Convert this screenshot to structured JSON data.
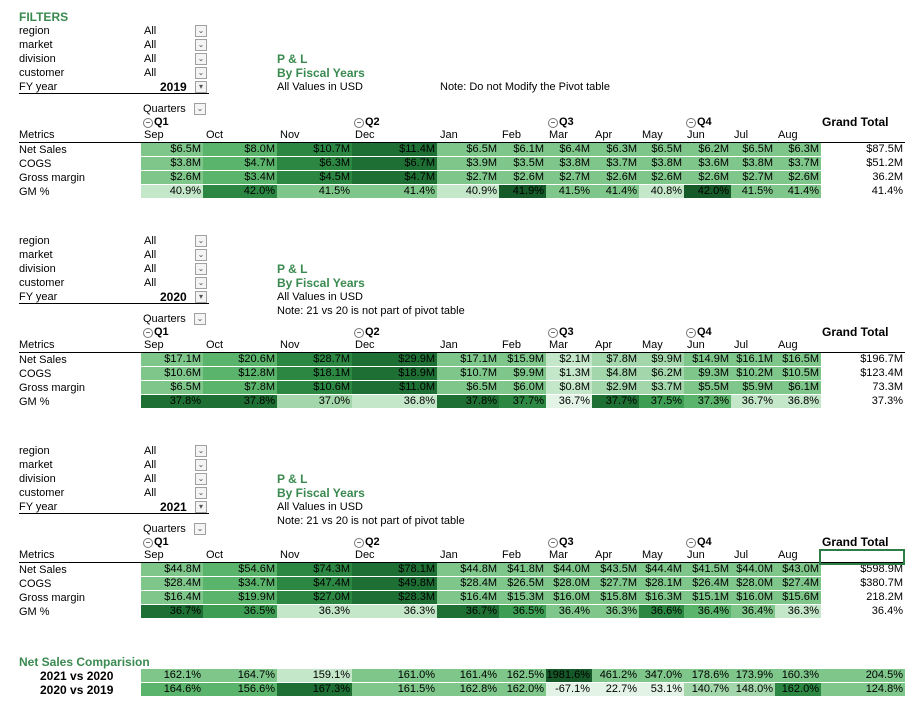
{
  "filters_title": "FILTERS",
  "filter_labels": [
    "region",
    "market",
    "division",
    "customer"
  ],
  "filter_value": "All",
  "fy_label": "FY year",
  "report_title": "P & L",
  "report_subtitle": "By Fiscal Years",
  "values_note": "All Values in USD",
  "quarters_label": "Quarters",
  "metrics_label": "Metrics",
  "grand_total_label": "Grand Total",
  "quarters": [
    "Q1",
    "Q2",
    "Q3",
    "Q4"
  ],
  "months": [
    "Sep",
    "Oct",
    "Nov",
    "Dec",
    "Jan",
    "Feb",
    "Mar",
    "Apr",
    "May",
    "Jun",
    "Jul",
    "Aug"
  ],
  "metric_names": [
    "Net Sales",
    "COGS",
    "Gross margin",
    "GM %"
  ],
  "blocks": [
    {
      "year": "2019",
      "note": "Note: Do not Modify the Pivot table",
      "rows": [
        {
          "values": [
            "$6.5M",
            "$8.0M",
            "$10.7M",
            "$11.4M",
            "$6.5M",
            "$6.1M",
            "$6.4M",
            "$6.3M",
            "$6.5M",
            "$6.2M",
            "$6.5M",
            "$6.3M"
          ],
          "total": "$87.5M"
        },
        {
          "values": [
            "$3.8M",
            "$4.7M",
            "$6.3M",
            "$6.7M",
            "$3.9M",
            "$3.5M",
            "$3.8M",
            "$3.7M",
            "$3.8M",
            "$3.6M",
            "$3.8M",
            "$3.7M"
          ],
          "total": "$51.2M"
        },
        {
          "values": [
            "$2.6M",
            "$3.4M",
            "$4.5M",
            "$4.7M",
            "$2.7M",
            "$2.6M",
            "$2.7M",
            "$2.6M",
            "$2.6M",
            "$2.6M",
            "$2.7M",
            "$2.6M"
          ],
          "total": "36.2M"
        },
        {
          "values": [
            "40.9%",
            "42.0%",
            "41.5%",
            "41.4%",
            "40.9%",
            "41.9%",
            "41.5%",
            "41.4%",
            "40.8%",
            "42.0%",
            "41.5%",
            "41.4%"
          ],
          "total": "41.4%"
        }
      ]
    },
    {
      "year": "2020",
      "note": "Note: 21 vs 20 is not part of pivot table",
      "rows": [
        {
          "values": [
            "$17.1M",
            "$20.6M",
            "$28.7M",
            "$29.9M",
            "$17.1M",
            "$15.9M",
            "$2.1M",
            "$7.8M",
            "$9.9M",
            "$14.9M",
            "$16.1M",
            "$16.5M"
          ],
          "total": "$196.7M"
        },
        {
          "values": [
            "$10.6M",
            "$12.8M",
            "$18.1M",
            "$18.9M",
            "$10.7M",
            "$9.9M",
            "$1.3M",
            "$4.8M",
            "$6.2M",
            "$9.3M",
            "$10.2M",
            "$10.5M"
          ],
          "total": "$123.4M"
        },
        {
          "values": [
            "$6.5M",
            "$7.8M",
            "$10.6M",
            "$11.0M",
            "$6.5M",
            "$6.0M",
            "$0.8M",
            "$2.9M",
            "$3.7M",
            "$5.5M",
            "$5.9M",
            "$6.1M"
          ],
          "total": "73.3M"
        },
        {
          "values": [
            "37.8%",
            "37.8%",
            "37.0%",
            "36.8%",
            "37.8%",
            "37.7%",
            "36.7%",
            "37.7%",
            "37.5%",
            "37.3%",
            "36.7%",
            "36.8%"
          ],
          "total": "37.3%"
        }
      ]
    },
    {
      "year": "2021",
      "note": "Note: 21 vs 20 is not part of pivot table",
      "rows": [
        {
          "values": [
            "$44.8M",
            "$54.6M",
            "$74.3M",
            "$78.1M",
            "$44.8M",
            "$41.8M",
            "$44.0M",
            "$43.5M",
            "$44.4M",
            "$41.5M",
            "$44.0M",
            "$43.0M"
          ],
          "total": "$598.9M"
        },
        {
          "values": [
            "$28.4M",
            "$34.7M",
            "$47.4M",
            "$49.8M",
            "$28.4M",
            "$26.5M",
            "$28.0M",
            "$27.7M",
            "$28.1M",
            "$26.4M",
            "$28.0M",
            "$27.4M"
          ],
          "total": "$380.7M"
        },
        {
          "values": [
            "$16.4M",
            "$19.9M",
            "$27.0M",
            "$28.3M",
            "$16.4M",
            "$15.3M",
            "$16.0M",
            "$15.8M",
            "$16.3M",
            "$15.1M",
            "$16.0M",
            "$15.6M"
          ],
          "total": "218.2M"
        },
        {
          "values": [
            "36.7%",
            "36.5%",
            "36.3%",
            "36.3%",
            "36.7%",
            "36.5%",
            "36.4%",
            "36.3%",
            "36.6%",
            "36.4%",
            "36.4%",
            "36.3%"
          ],
          "total": "36.4%"
        }
      ]
    }
  ],
  "comparison": {
    "title": "Net Sales Comparision",
    "rows": [
      {
        "label": "2021 vs 2020",
        "values": [
          "162.1%",
          "164.7%",
          "159.1%",
          "161.0%",
          "161.4%",
          "162.5%",
          "1981.6%",
          "461.2%",
          "347.0%",
          "178.6%",
          "173.9%",
          "160.3%"
        ],
        "total": "204.5%"
      },
      {
        "label": "2020 vs 2019",
        "values": [
          "164.6%",
          "156.6%",
          "167.3%",
          "161.5%",
          "162.8%",
          "162.0%",
          "-67.1%",
          "22.7%",
          "53.1%",
          "140.7%",
          "148.0%",
          "162.0%"
        ],
        "total": "124.8%"
      }
    ]
  },
  "colors": {
    "title_green": "#3a8a50",
    "heat": [
      "#e3f3e5",
      "#c4e6c9",
      "#a3d7ab",
      "#7fc68a",
      "#5bb46b",
      "#3d9e53",
      "#2b8742",
      "#1e6f33",
      "#155a28"
    ]
  }
}
